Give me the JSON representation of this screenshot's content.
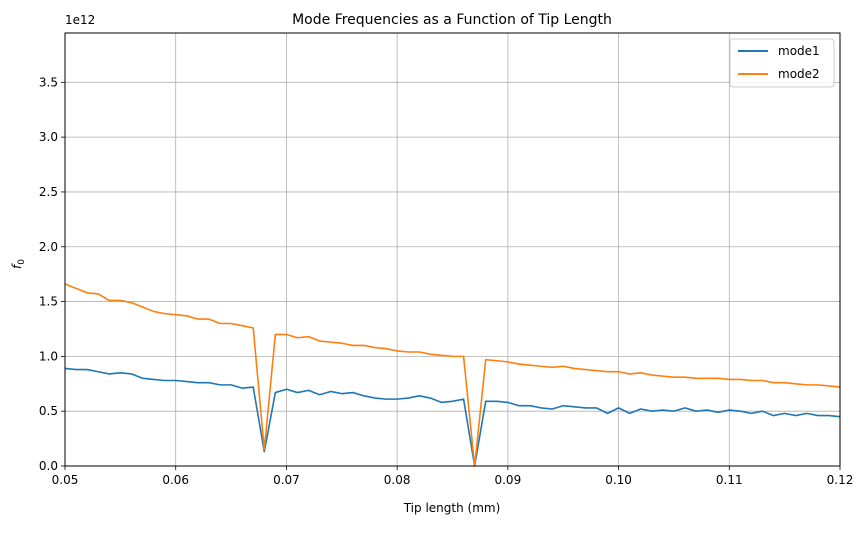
{
  "chart_data": {
    "type": "line",
    "title": "Mode Frequencies as a Function of Tip Length",
    "xlabel": "Tip length (mm)",
    "ylabel": "f",
    "ylabel_subscript": "0",
    "y_offset_label": "1e12",
    "xlim": [
      0.05,
      0.12
    ],
    "ylim": [
      0,
      3.95
    ],
    "y_scale_factor": 1000000000000.0,
    "grid": true,
    "legend_position": "top-right",
    "x_ticks": [
      0.05,
      0.06,
      0.07,
      0.08,
      0.09,
      0.1,
      0.11,
      0.12
    ],
    "x_tick_labels": [
      "0.05",
      "0.06",
      "0.07",
      "0.08",
      "0.09",
      "0.10",
      "0.11",
      "0.12"
    ],
    "y_ticks": [
      0,
      0.5,
      1.0,
      1.5,
      2.0,
      2.5,
      3.0,
      3.5
    ],
    "y_tick_labels": [
      "0.0",
      "0.5",
      "1.0",
      "1.5",
      "2.0",
      "2.5",
      "3.0",
      "3.5"
    ],
    "x": [
      0.05,
      0.051,
      0.052,
      0.053,
      0.054,
      0.055,
      0.056,
      0.057,
      0.058,
      0.059,
      0.06,
      0.061,
      0.062,
      0.063,
      0.064,
      0.065,
      0.066,
      0.067,
      0.068,
      0.069,
      0.07,
      0.071,
      0.072,
      0.073,
      0.074,
      0.075,
      0.076,
      0.077,
      0.078,
      0.079,
      0.08,
      0.081,
      0.082,
      0.083,
      0.084,
      0.085,
      0.086,
      0.087,
      0.088,
      0.089,
      0.09,
      0.091,
      0.092,
      0.093,
      0.094,
      0.095,
      0.096,
      0.097,
      0.098,
      0.099,
      0.1,
      0.101,
      0.102,
      0.103,
      0.104,
      0.105,
      0.106,
      0.107,
      0.108,
      0.109,
      0.11,
      0.111,
      0.112,
      0.113,
      0.114,
      0.115,
      0.116,
      0.117,
      0.118,
      0.119,
      0.12
    ],
    "series": [
      {
        "name": "mode1",
        "color": "#1f77b4",
        "values": [
          0.89,
          0.88,
          0.88,
          0.86,
          0.84,
          0.85,
          0.84,
          0.8,
          0.79,
          0.78,
          0.78,
          0.77,
          0.76,
          0.76,
          0.74,
          0.74,
          0.71,
          0.72,
          0.13,
          0.67,
          0.7,
          0.67,
          0.69,
          0.65,
          0.68,
          0.66,
          0.67,
          0.64,
          0.62,
          0.61,
          0.61,
          0.62,
          0.64,
          0.62,
          0.58,
          0.59,
          0.61,
          0.0,
          0.59,
          0.59,
          0.58,
          0.55,
          0.55,
          0.53,
          0.52,
          0.55,
          0.54,
          0.53,
          0.53,
          0.48,
          0.53,
          0.48,
          0.52,
          0.5,
          0.51,
          0.5,
          0.53,
          0.5,
          0.51,
          0.49,
          0.51,
          0.5,
          0.48,
          0.5,
          0.46,
          0.48,
          0.46,
          0.48,
          0.46,
          0.46,
          0.45
        ]
      },
      {
        "name": "mode2",
        "color": "#ff7f0e",
        "values": [
          1.66,
          1.62,
          1.58,
          1.57,
          1.51,
          1.51,
          1.49,
          1.45,
          1.41,
          1.39,
          1.38,
          1.37,
          1.34,
          1.34,
          1.3,
          1.3,
          1.28,
          1.26,
          0.15,
          1.2,
          1.2,
          1.17,
          1.18,
          1.14,
          1.13,
          1.12,
          1.1,
          1.1,
          1.08,
          1.07,
          1.05,
          1.04,
          1.04,
          1.02,
          1.01,
          1.0,
          1.0,
          0.0,
          0.97,
          0.96,
          0.95,
          0.93,
          0.92,
          0.91,
          0.9,
          0.91,
          0.89,
          0.88,
          0.87,
          0.86,
          0.86,
          0.84,
          0.85,
          0.83,
          0.82,
          0.81,
          0.81,
          0.8,
          0.8,
          0.8,
          0.79,
          0.79,
          0.78,
          0.78,
          0.76,
          0.76,
          0.75,
          0.74,
          0.74,
          0.73,
          0.72
        ]
      }
    ]
  }
}
